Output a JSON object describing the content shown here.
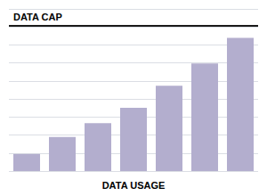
{
  "chart_data": {
    "type": "bar",
    "x_label": "DATA USAGE",
    "categories": [
      null,
      null,
      null,
      null,
      null,
      null,
      null
    ],
    "values": [
      1.0,
      2.0,
      2.8,
      3.7,
      5.0,
      6.3,
      7.8
    ],
    "color": "#b3aece",
    "ylim": [
      0,
      9.5
    ],
    "yticks": [
      0,
      1.0555555555555556,
      2.111111111111111,
      3.1666666666666665,
      4.222222222222222,
      5.277777777777778,
      6.333333333333333,
      7.388888888888889,
      8.444444444444445,
      9.5
    ],
    "grid": true,
    "tick_labels": false,
    "annotations": [
      {
        "label": "DATA CAP",
        "y": 8.5
      }
    ]
  }
}
